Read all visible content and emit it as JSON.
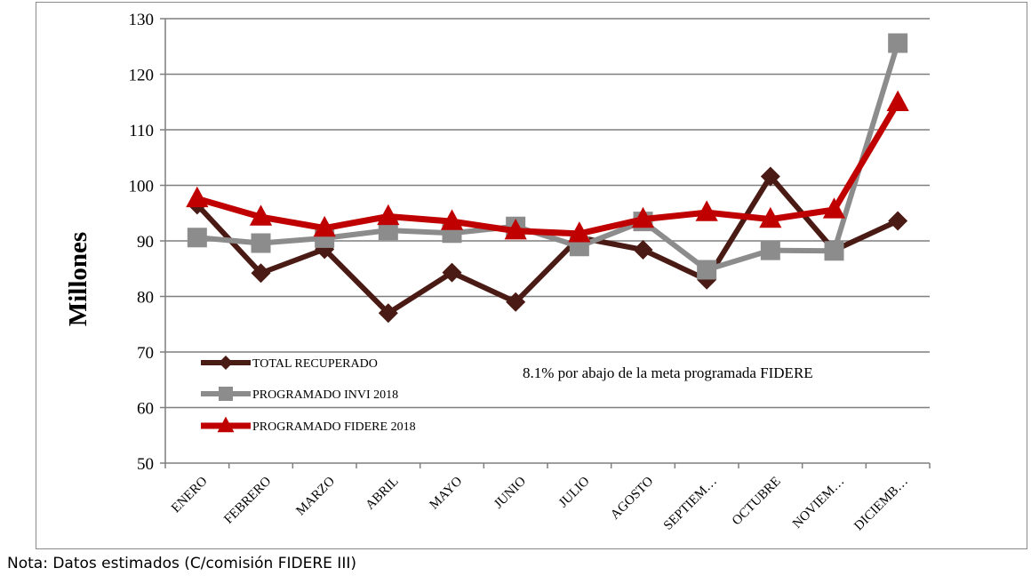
{
  "note": "Nota: Datos estimados (C/comisión FIDERE III)",
  "chart_data": {
    "type": "line",
    "ylabel": "Millones",
    "ylim": [
      50,
      130
    ],
    "yticks": [
      50,
      60,
      70,
      80,
      90,
      100,
      110,
      120,
      130
    ],
    "categories": [
      "ENERO",
      "FEBRERO",
      "MARZO",
      "ABRIL",
      "MAYO",
      "JUNIO",
      "JULIO",
      "AGOSTO",
      "SEPTIEM…",
      "OCTUBRE",
      "NOVIEM…",
      "DICIEMB…"
    ],
    "grid": true,
    "legend_placement": "lower-left",
    "annotation": "8.1% por abajo de la meta programada FIDERE",
    "series": [
      {
        "name": "TOTAL RECUPERADO",
        "color": "#4a1a14",
        "marker": "diamond",
        "values": [
          96.5,
          84.2,
          88.5,
          77.0,
          84.3,
          79.0,
          90.6,
          88.4,
          83.0,
          101.6,
          88.3,
          93.6
        ]
      },
      {
        "name": "PROGRAMADO INVI 2018",
        "color": "#8c8c8c",
        "marker": "square",
        "values": [
          90.6,
          89.6,
          90.5,
          91.9,
          91.4,
          92.6,
          89.0,
          93.5,
          84.8,
          88.3,
          88.2,
          125.6
        ]
      },
      {
        "name": "PROGRAMADO FIDERE 2018",
        "color": "#c00000",
        "marker": "triangle",
        "values": [
          97.6,
          94.3,
          92.3,
          94.4,
          93.5,
          91.8,
          91.3,
          93.9,
          95.1,
          93.9,
          95.6,
          114.9
        ]
      }
    ]
  }
}
